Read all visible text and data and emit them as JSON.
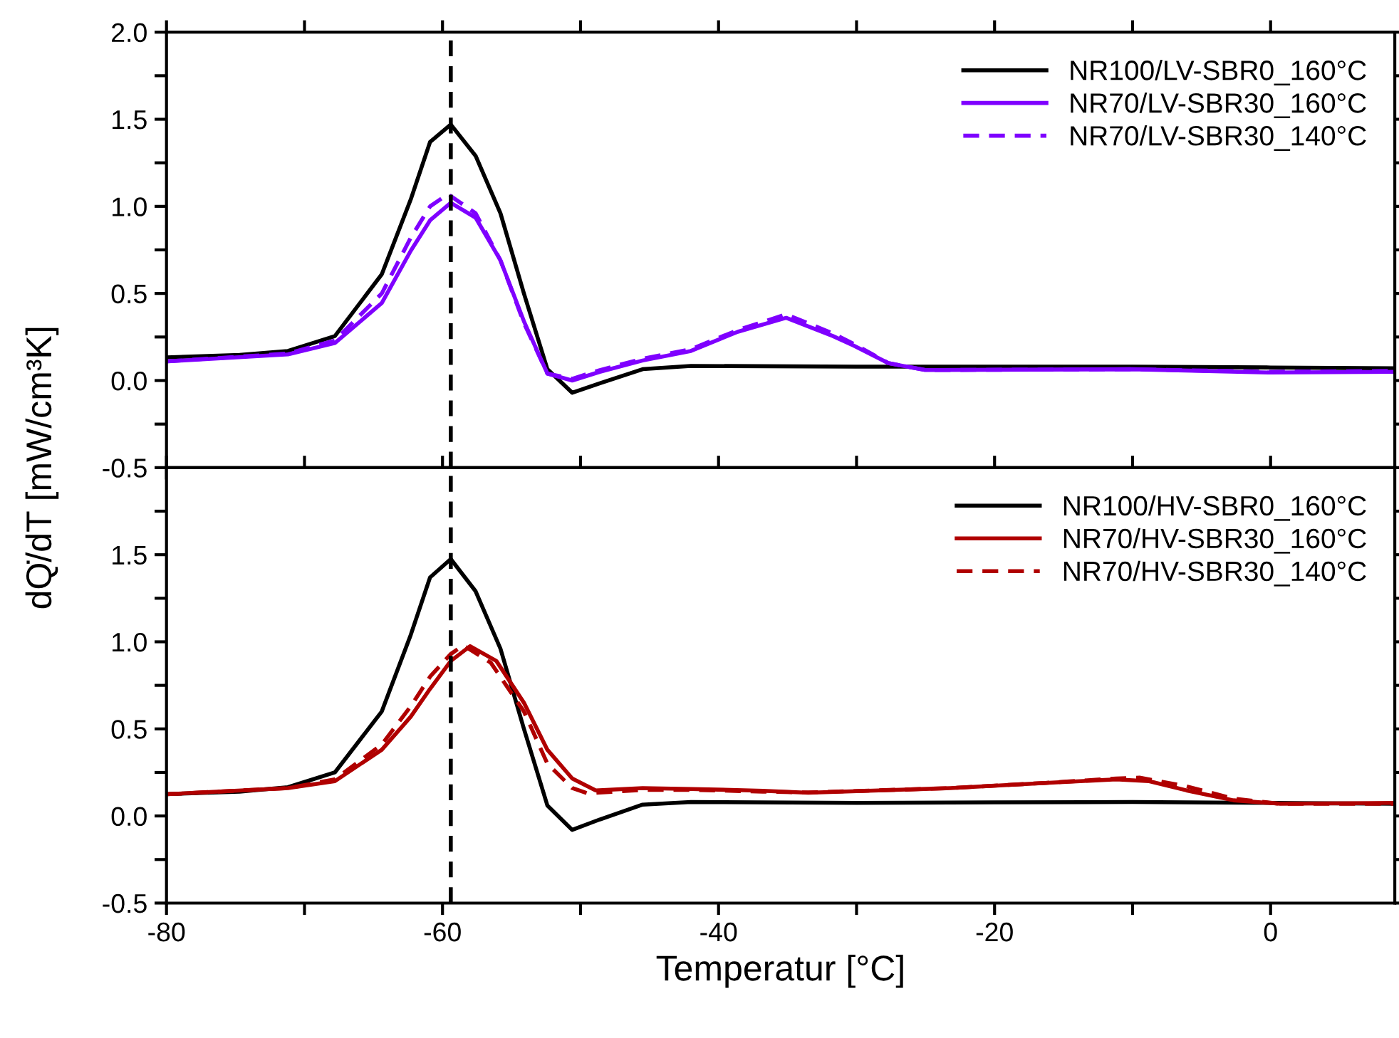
{
  "chart_data": [
    {
      "type": "line",
      "ylabel": "dQ̇/dT [mW/cm³K]",
      "xlim": [
        -80,
        9
      ],
      "ylim": [
        -0.5,
        2.0
      ],
      "xticks": [
        {
          "value": -80,
          "label": null
        },
        {
          "value": -70,
          "label": null
        },
        {
          "value": -60,
          "label": null
        },
        {
          "value": -50,
          "label": null
        },
        {
          "value": -40,
          "label": null
        },
        {
          "value": -30,
          "label": null
        },
        {
          "value": -20,
          "label": null
        },
        {
          "value": -10,
          "label": null
        },
        {
          "value": 0,
          "label": null
        }
      ],
      "yticks": [
        {
          "value": -0.5,
          "label": "-0.5"
        },
        {
          "value": -0.25,
          "label": null
        },
        {
          "value": 0,
          "label": "0.0"
        },
        {
          "value": 0.25,
          "label": null
        },
        {
          "value": 0.5,
          "label": "0.5"
        },
        {
          "value": 0.75,
          "label": null
        },
        {
          "value": 1.0,
          "label": "1.0"
        },
        {
          "value": 1.25,
          "label": null
        },
        {
          "value": 1.5,
          "label": "1.5"
        },
        {
          "value": 1.75,
          "label": null
        },
        {
          "value": 2.0,
          "label": "2.0"
        }
      ],
      "tick_labels": "y",
      "grid": false,
      "legend": "top right",
      "ref_lines": [
        {
          "axis": "x",
          "value": -59.4,
          "color": "#000000",
          "line_style": "dashed"
        }
      ],
      "series": [
        {
          "name": "NR100/LV-SBR0_160°C",
          "color": "#000000",
          "line_style": "solid",
          "x": [
            -80,
            -74.7,
            -71.2,
            -67.8,
            -64.4,
            -62.3,
            -60.9,
            -59.4,
            -57.6,
            -55.8,
            -54.1,
            -52.4,
            -50.6,
            -48.6,
            -45.5,
            -42,
            -30,
            -20,
            -10,
            0,
            9
          ],
          "values": [
            0.133,
            0.147,
            0.17,
            0.255,
            0.61,
            1.04,
            1.37,
            1.47,
            1.29,
            0.96,
            0.5,
            0.065,
            -0.07,
            -0.016,
            0.065,
            0.084,
            0.08,
            0.08,
            0.08,
            0.075,
            0.07
          ]
        },
        {
          "name": "NR70/LV-SBR30_160°C",
          "color": "#7f00ff",
          "line_style": "solid",
          "x": [
            -80,
            -71.2,
            -67.8,
            -64.4,
            -62.3,
            -60.9,
            -59.4,
            -57.6,
            -55.8,
            -54.1,
            -52.4,
            -50.6,
            -48.6,
            -45.5,
            -42,
            -38.6,
            -35.1,
            -31.7,
            -30.2,
            -27.7,
            -25,
            -10,
            0,
            9
          ],
          "values": [
            0.11,
            0.15,
            0.215,
            0.445,
            0.745,
            0.92,
            1.02,
            0.935,
            0.69,
            0.34,
            0.04,
            0.0,
            0.05,
            0.115,
            0.17,
            0.28,
            0.36,
            0.255,
            0.2,
            0.1,
            0.06,
            0.065,
            0.046,
            0.05
          ]
        },
        {
          "name": "NR70/LV-SBR30_140°C",
          "color": "#7f00ff",
          "line_style": "dashed",
          "x": [
            -80,
            -71.2,
            -67.8,
            -64.4,
            -62.3,
            -60.9,
            -59.6,
            -57.6,
            -55.8,
            -54.1,
            -52.4,
            -50.6,
            -48.6,
            -45.5,
            -42,
            -38.6,
            -35.1,
            -31.7,
            -30.2,
            -27.7,
            -25,
            -10,
            0,
            9
          ],
          "values": [
            0.11,
            0.155,
            0.23,
            0.5,
            0.82,
            1.0,
            1.07,
            0.96,
            0.69,
            0.33,
            0.04,
            0.01,
            0.06,
            0.125,
            0.18,
            0.29,
            0.38,
            0.27,
            0.21,
            0.1,
            0.06,
            0.065,
            0.05,
            0.055
          ]
        }
      ]
    },
    {
      "type": "line",
      "xlabel": "Temperatur [°C]",
      "xlim": [
        -80,
        9
      ],
      "ylim": [
        -0.5,
        2.0
      ],
      "xticks": [
        {
          "value": -80,
          "label": "-80"
        },
        {
          "value": -70,
          "label": null
        },
        {
          "value": -60,
          "label": "-60"
        },
        {
          "value": -50,
          "label": null
        },
        {
          "value": -40,
          "label": "-40"
        },
        {
          "value": -30,
          "label": null
        },
        {
          "value": -20,
          "label": "-20"
        },
        {
          "value": -10,
          "label": null
        },
        {
          "value": 0,
          "label": "0"
        }
      ],
      "yticks": [
        {
          "value": -0.5,
          "label": "-0.5"
        },
        {
          "value": -0.25,
          "label": null
        },
        {
          "value": 0,
          "label": "0.0"
        },
        {
          "value": 0.25,
          "label": null
        },
        {
          "value": 0.5,
          "label": "0.5"
        },
        {
          "value": 0.75,
          "label": null
        },
        {
          "value": 1.0,
          "label": "1.0"
        },
        {
          "value": 1.25,
          "label": null
        },
        {
          "value": 1.5,
          "label": "1.5"
        },
        {
          "value": 1.75,
          "label": null
        }
      ],
      "grid": false,
      "legend": "top right",
      "ref_lines": [
        {
          "axis": "x",
          "value": -59.4,
          "color": "#000000",
          "line_style": "dashed"
        }
      ],
      "series": [
        {
          "name": "NR100/HV-SBR0_160°C",
          "color": "#000000",
          "line_style": "solid",
          "x": [
            -80,
            -74.7,
            -71.2,
            -67.8,
            -64.4,
            -62.3,
            -60.9,
            -59.4,
            -57.6,
            -55.8,
            -54.1,
            -52.4,
            -50.6,
            -48.6,
            -45.5,
            -42,
            -30,
            -20,
            -10,
            0,
            9
          ],
          "values": [
            0.125,
            0.14,
            0.165,
            0.25,
            0.6,
            1.04,
            1.37,
            1.475,
            1.29,
            0.96,
            0.5,
            0.06,
            -0.08,
            -0.02,
            0.065,
            0.08,
            0.075,
            0.078,
            0.08,
            0.075,
            0.07
          ]
        },
        {
          "name": "NR70/HV-SBR30_160°C",
          "color": "#b00000",
          "line_style": "solid",
          "x": [
            -80,
            -71.2,
            -67.8,
            -64.4,
            -62.3,
            -60.9,
            -59.4,
            -58.0,
            -56.1,
            -54.1,
            -52.4,
            -50.6,
            -48.9,
            -45.5,
            -42,
            -36.8,
            -33.5,
            -23.2,
            -16.3,
            -11.2,
            -8.8,
            -6.1,
            -2.7,
            0.7,
            9
          ],
          "values": [
            0.125,
            0.16,
            0.2,
            0.38,
            0.57,
            0.73,
            0.89,
            0.975,
            0.89,
            0.65,
            0.38,
            0.215,
            0.147,
            0.16,
            0.155,
            0.145,
            0.133,
            0.16,
            0.19,
            0.21,
            0.2,
            0.147,
            0.09,
            0.07,
            0.075
          ]
        },
        {
          "name": "NR70/HV-SBR30_140°C",
          "color": "#b00000",
          "line_style": "dashed",
          "x": [
            -80,
            -71.2,
            -67.8,
            -64.4,
            -62.3,
            -60.9,
            -59.4,
            -58.5,
            -56.5,
            -54.1,
            -52.4,
            -50.6,
            -49.5,
            -45.5,
            -42,
            -36.8,
            -33.5,
            -23.2,
            -16.3,
            -11.2,
            -9.5,
            -6.1,
            -2.7,
            0.7,
            9
          ],
          "values": [
            0.125,
            0.16,
            0.21,
            0.41,
            0.63,
            0.8,
            0.93,
            0.98,
            0.88,
            0.6,
            0.3,
            0.16,
            0.13,
            0.15,
            0.15,
            0.14,
            0.135,
            0.16,
            0.19,
            0.215,
            0.22,
            0.17,
            0.1,
            0.07,
            0.07
          ]
        }
      ]
    }
  ]
}
